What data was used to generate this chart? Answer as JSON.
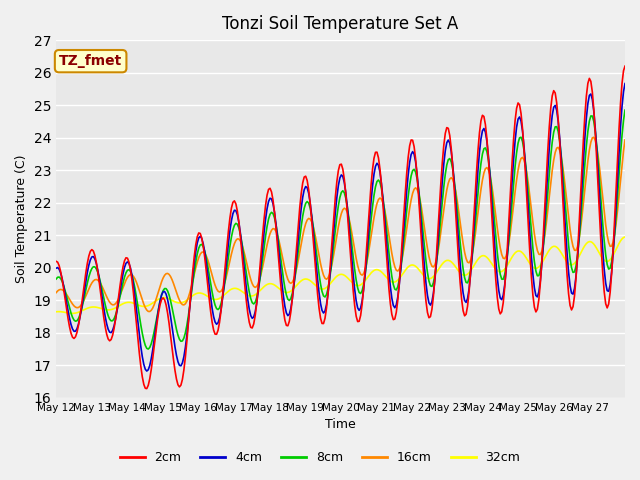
{
  "title": "Tonzi Soil Temperature Set A",
  "xlabel": "Time",
  "ylabel": "Soil Temperature (C)",
  "ylim": [
    16.0,
    27.0
  ],
  "yticks": [
    16.0,
    17.0,
    18.0,
    19.0,
    20.0,
    21.0,
    22.0,
    23.0,
    24.0,
    25.0,
    26.0,
    27.0
  ],
  "plot_bg_color": "#e8e8e8",
  "fig_bg_color": "#f0f0f0",
  "grid_color": "#ffffff",
  "series_colors": {
    "2cm": "#ff0000",
    "4cm": "#0000cc",
    "8cm": "#00cc00",
    "16cm": "#ff8800",
    "32cm": "#ffff00"
  },
  "legend_label": "TZ_fmet",
  "legend_bg": "#ffffcc",
  "legend_border": "#cc8800",
  "n_days": 16,
  "xtick_labels": [
    "May 12",
    "May 13",
    "May 14",
    "May 15",
    "May 16",
    "May 17",
    "May 18",
    "May 19",
    "May 20",
    "May 21",
    "May 22",
    "May 23",
    "May 24",
    "May 25",
    "May 26",
    "May 27"
  ]
}
